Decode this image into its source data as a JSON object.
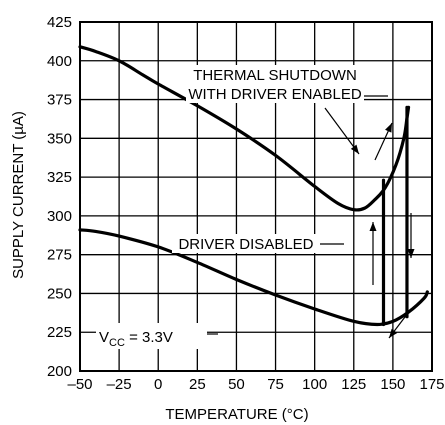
{
  "chart_data": {
    "type": "line",
    "title": "",
    "xlabel": "TEMPERATURE (°C)",
    "ylabel": "SUPPLY CURRENT (µA)",
    "xlim": [
      -50,
      175
    ],
    "ylim": [
      200,
      425
    ],
    "x_ticks": [
      "–50",
      "–25",
      "0",
      "25",
      "50",
      "75",
      "100",
      "125",
      "150",
      "175"
    ],
    "y_ticks": [
      "200",
      "225",
      "250",
      "275",
      "300",
      "325",
      "350",
      "375",
      "400",
      "425"
    ],
    "grid": true,
    "series": [
      {
        "id": "enabled",
        "x": [
          -50,
          -40,
          -25,
          -10,
          0,
          25,
          50,
          75,
          100,
          115,
          125,
          132,
          138,
          145,
          152,
          157,
          159,
          160
        ],
        "y": [
          409,
          406,
          400,
          391,
          385,
          371,
          356,
          339,
          319,
          308,
          304,
          305,
          310,
          318,
          333,
          350,
          363,
          370
        ]
      },
      {
        "id": "disabled",
        "x": [
          -50,
          -40,
          -25,
          0,
          25,
          50,
          75,
          100,
          125,
          140,
          150,
          160,
          170,
          172
        ],
        "y": [
          291,
          290,
          287,
          280,
          270,
          259,
          249,
          240,
          232,
          230,
          232,
          238,
          247,
          251
        ]
      }
    ],
    "transitions": [
      {
        "id": "disabled-shutdown",
        "x": 144,
        "y_from": 230,
        "y_to": 323
      },
      {
        "id": "enabled-shutdown",
        "x": 159,
        "y_from": 370,
        "y_to": 235
      }
    ],
    "annotations": {
      "enabled_line1": "THERMAL SHUTDOWN",
      "enabled_line2": "WITH DRIVER ENABLED",
      "disabled": "DRIVER DISABLED",
      "vcc_prefix": "V",
      "vcc_sub": "CC",
      "vcc_suffix": " = 3.3V"
    }
  }
}
